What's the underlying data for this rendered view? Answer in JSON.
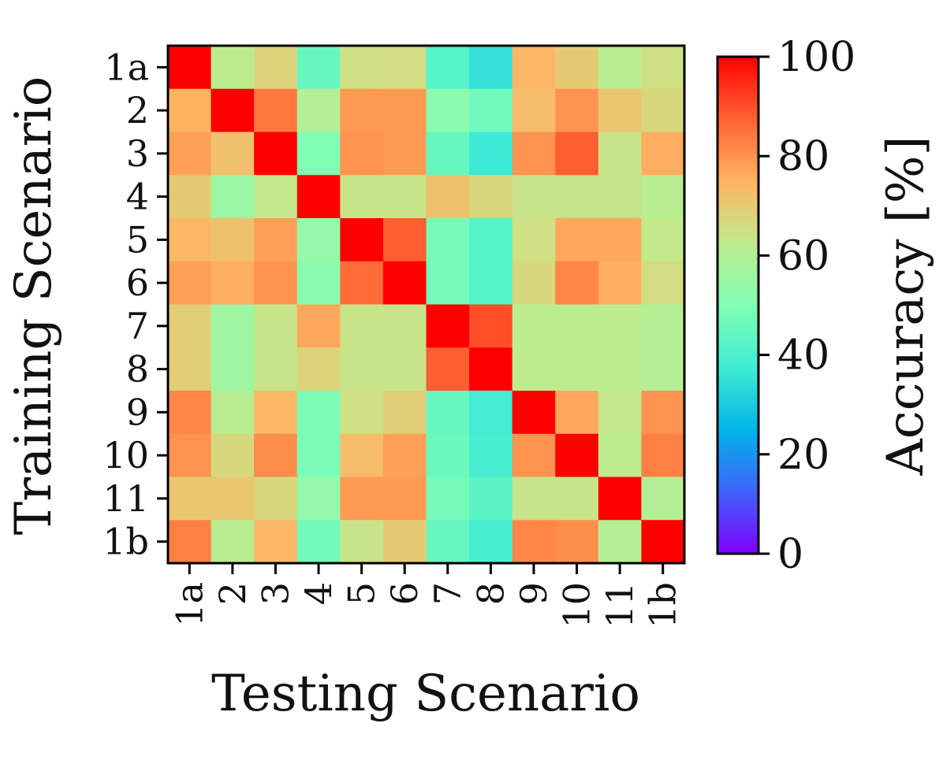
{
  "chart_data": {
    "type": "heatmap",
    "xlabel": "Testing Scenario",
    "ylabel": "Training Scenario",
    "x_categories": [
      "1a",
      "2",
      "3",
      "4",
      "5",
      "6",
      "7",
      "8",
      "9",
      "10",
      "11",
      "1b"
    ],
    "y_categories": [
      "1a",
      "2",
      "3",
      "4",
      "5",
      "6",
      "7",
      "8",
      "9",
      "10",
      "11",
      "1b"
    ],
    "values": [
      [
        100,
        62,
        68,
        45,
        65,
        66,
        42,
        35,
        74,
        70,
        61,
        65
      ],
      [
        75,
        100,
        84,
        60,
        79,
        79,
        52,
        47,
        73,
        80,
        71,
        67
      ],
      [
        78,
        72,
        100,
        50,
        80,
        79,
        45,
        37,
        80,
        88,
        64,
        76
      ],
      [
        70,
        55,
        63,
        100,
        64,
        64,
        72,
        67,
        64,
        64,
        64,
        61
      ],
      [
        74,
        72,
        78,
        54,
        100,
        88,
        48,
        42,
        65,
        77,
        77,
        63
      ],
      [
        78,
        76,
        80,
        52,
        86,
        100,
        48,
        42,
        67,
        82,
        76,
        66
      ],
      [
        69,
        56,
        64,
        77,
        64,
        64,
        100,
        90,
        62,
        62,
        62,
        60
      ],
      [
        69,
        56,
        64,
        68,
        64,
        64,
        88,
        100,
        62,
        62,
        62,
        60
      ],
      [
        82,
        61,
        74,
        49,
        65,
        69,
        45,
        38,
        100,
        77,
        63,
        80
      ],
      [
        80,
        67,
        81,
        49,
        73,
        78,
        46,
        39,
        80,
        100,
        62,
        83
      ],
      [
        71,
        71,
        67,
        54,
        79,
        79,
        48,
        43,
        64,
        64,
        100,
        60
      ],
      [
        83,
        61,
        74,
        47,
        64,
        70,
        45,
        39,
        82,
        81,
        60,
        100
      ]
    ],
    "colorbar": {
      "label": "Accuracy [%]",
      "range": [
        0,
        100
      ],
      "ticks": [
        "0",
        "20",
        "40",
        "60",
        "80",
        "100"
      ],
      "colormap": "rainbow"
    }
  }
}
